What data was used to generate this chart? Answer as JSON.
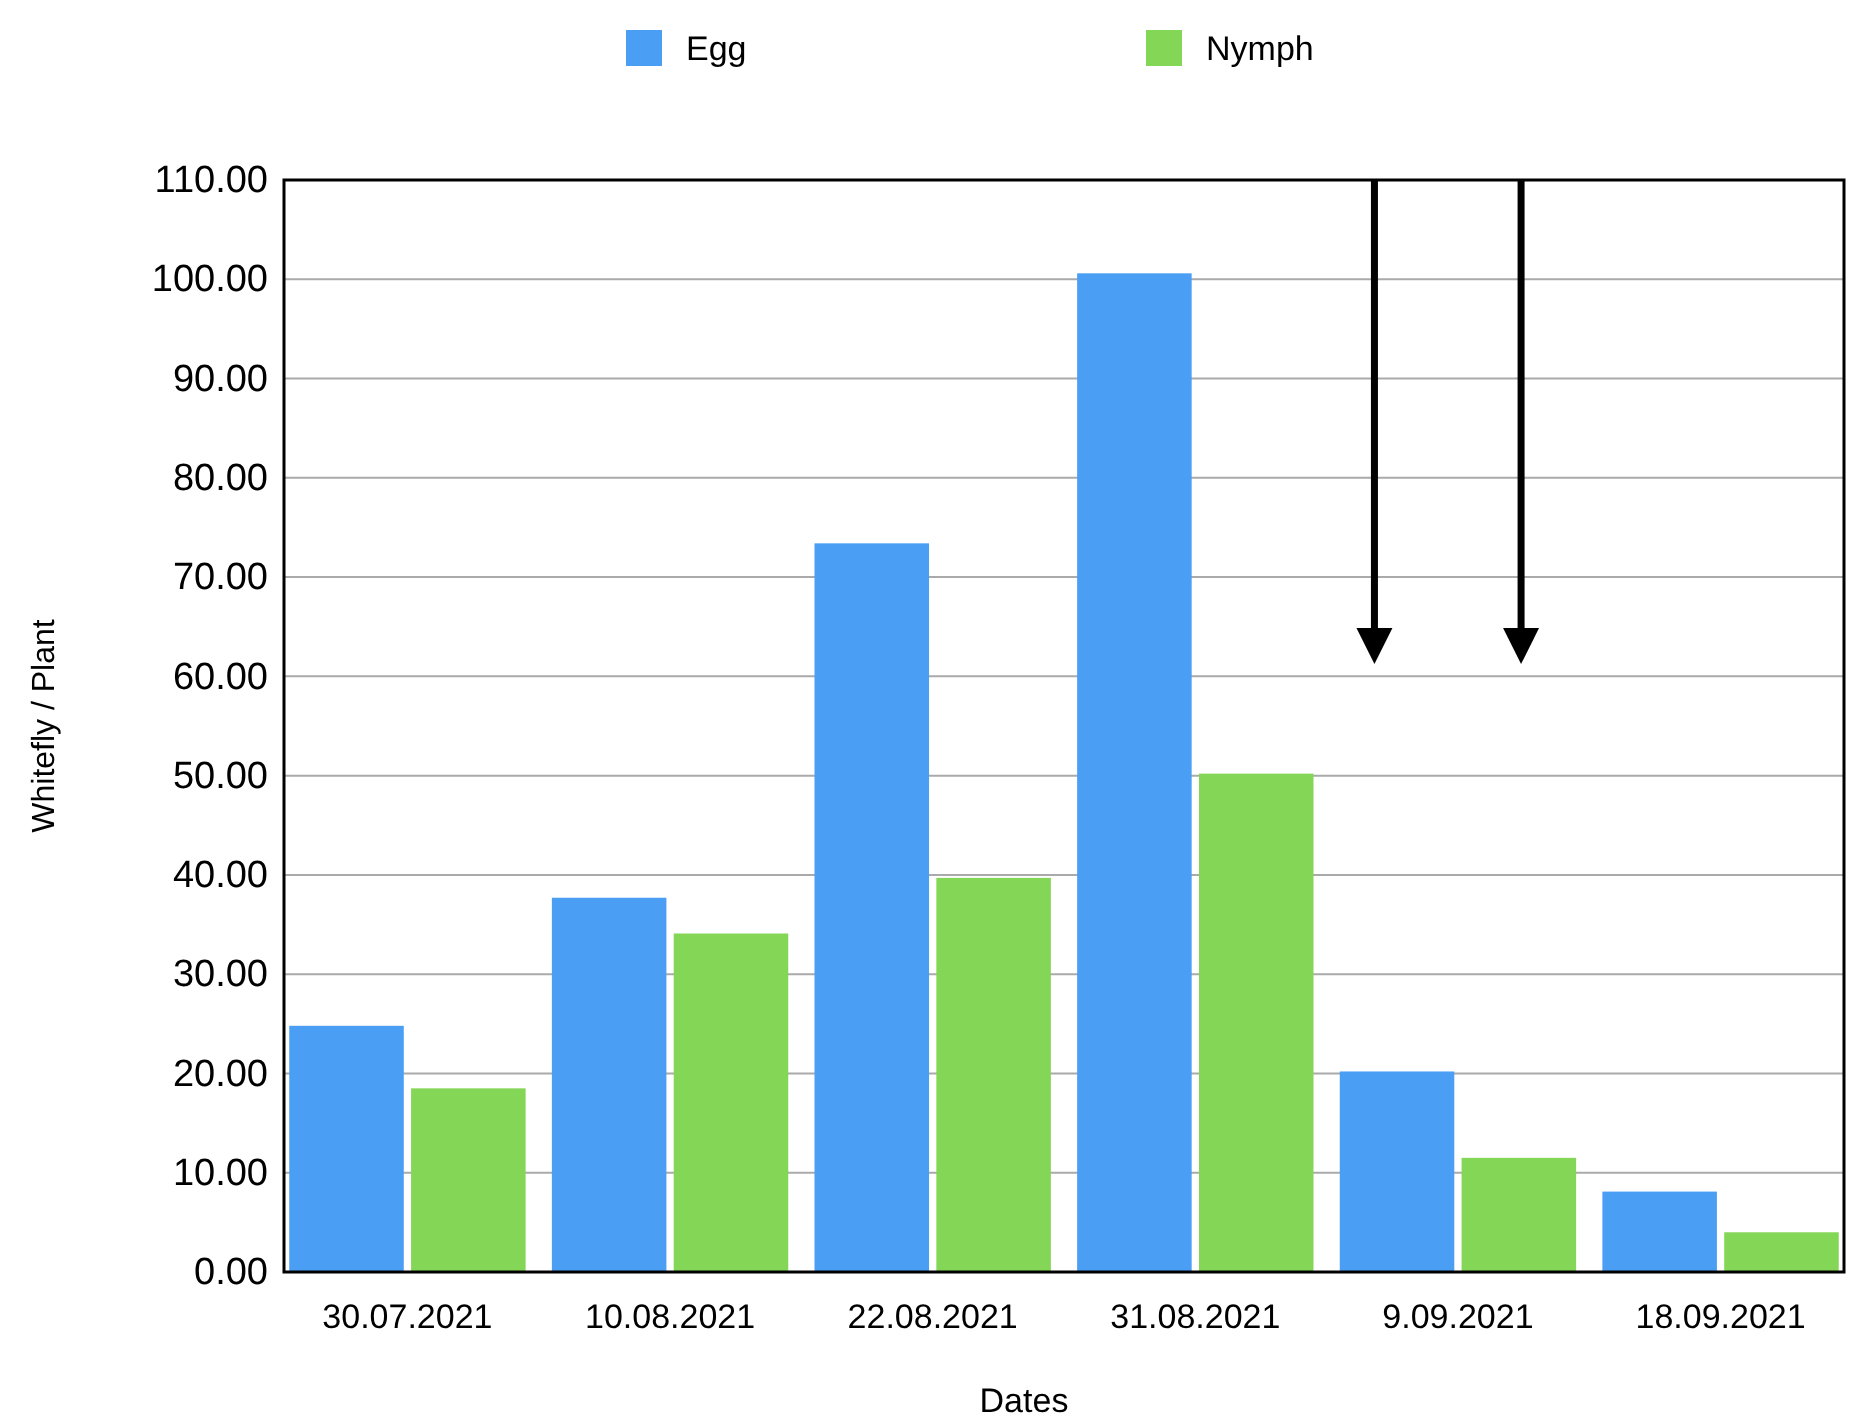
{
  "chart_data": {
    "type": "bar",
    "xlabel": "Dates",
    "ylabel": "Whitefly / Plant",
    "categories": [
      "30.07.2021",
      "10.08.2021",
      "22.08.2021",
      "31.08.2021",
      "9.09.2021",
      "18.09.2021"
    ],
    "series": [
      {
        "name": "Egg",
        "color": "#4a9ff5",
        "values": [
          24.8,
          37.7,
          73.4,
          100.6,
          20.2,
          8.1
        ]
      },
      {
        "name": "Nymph",
        "color": "#84d656",
        "values": [
          18.5,
          34.1,
          39.7,
          50.2,
          11.5,
          4.0
        ]
      }
    ],
    "ylim": [
      0,
      110
    ],
    "yticks": [
      {
        "value": 0,
        "label": "0.00"
      },
      {
        "value": 10,
        "label": "10.00"
      },
      {
        "value": 20,
        "label": "20.00"
      },
      {
        "value": 30,
        "label": "30.00"
      },
      {
        "value": 40,
        "label": "40.00"
      },
      {
        "value": 50,
        "label": "50.00"
      },
      {
        "value": 60,
        "label": "60.00"
      },
      {
        "value": 70,
        "label": "70.00"
      },
      {
        "value": 80,
        "label": "80.00"
      },
      {
        "value": 90,
        "label": "90.00"
      },
      {
        "value": 100,
        "label": "100.00"
      },
      {
        "value": 110,
        "label": "110.00"
      }
    ],
    "grid": "y",
    "legend": "top"
  }
}
